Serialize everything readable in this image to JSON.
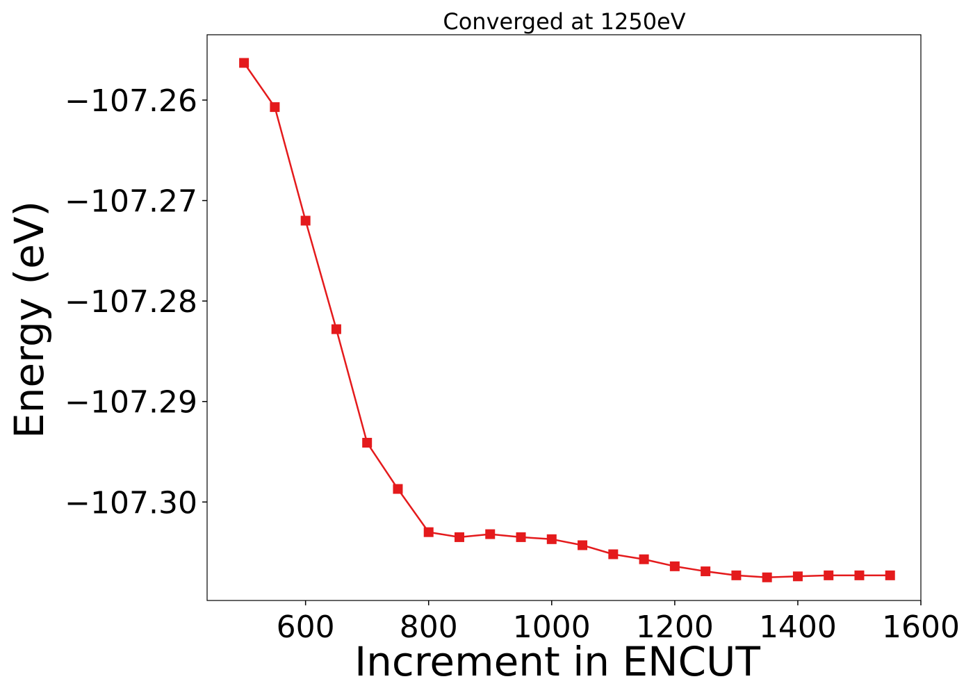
{
  "chart_data": {
    "type": "line",
    "title": "Converged at 1250eV",
    "xlabel": "Increment in ENCUT",
    "ylabel": "Energy (eV)",
    "xlim": [
      440,
      1600
    ],
    "ylim": [
      -107.3098,
      -107.2535
    ],
    "xticks": [
      600,
      800,
      1000,
      1200,
      1400,
      1600
    ],
    "yticks": [
      -107.26,
      -107.27,
      -107.28,
      -107.29,
      -107.3
    ],
    "xtick_labels": [
      "600",
      "800",
      "1000",
      "1200",
      "1400",
      "1600"
    ],
    "ytick_labels": [
      "−107.26",
      "−107.27",
      "−107.28",
      "−107.29",
      "−107.30"
    ],
    "grid": false,
    "series": [
      {
        "color": "#e41a1c",
        "marker": "square",
        "x": [
          500,
          550,
          600,
          650,
          700,
          750,
          800,
          850,
          900,
          950,
          1000,
          1050,
          1100,
          1150,
          1200,
          1250,
          1300,
          1350,
          1400,
          1450,
          1500,
          1550
        ],
        "y": [
          -107.2563,
          -107.2607,
          -107.272,
          -107.2828,
          -107.2941,
          -107.2987,
          -107.303,
          -107.3035,
          -107.3032,
          -107.3035,
          -107.3037,
          -107.3043,
          -107.3052,
          -107.3057,
          -107.3064,
          -107.3069,
          -107.3073,
          -107.3075,
          -107.3074,
          -107.3073,
          -107.3073,
          -107.3073
        ]
      }
    ]
  }
}
